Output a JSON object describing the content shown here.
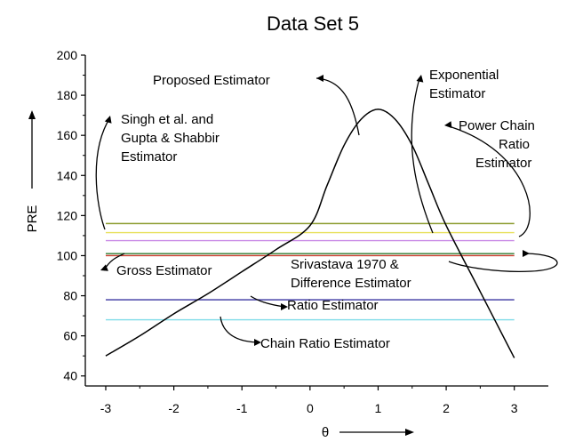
{
  "chart_data": {
    "type": "line",
    "title": "Data Set 5",
    "xlabel": "θ",
    "ylabel": "PRE",
    "xlim": [
      -3.3,
      3.5
    ],
    "ylim": [
      35,
      200
    ],
    "xticks": [
      -3,
      -2,
      -1,
      0,
      1,
      2,
      3
    ],
    "yticks": [
      40,
      60,
      80,
      100,
      120,
      140,
      160,
      180,
      200
    ],
    "grid": false,
    "colors": {
      "curves": "#000000",
      "singh_gupta_shabbir": "#8a9a2c",
      "power_chain_ratio": "#e8e05a",
      "purple_line": "#c98ae6",
      "srivastava_difference": "#2e7d32",
      "gross": "#c73a2a",
      "ratio": "#3a36a0",
      "chain_ratio": "#7fdbe8"
    },
    "constant_series": [
      {
        "color_key": "singh_gupta_shabbir",
        "y": 116,
        "x": [
          -3,
          3
        ]
      },
      {
        "color_key": "power_chain_ratio",
        "y": 111.5,
        "x": [
          -3,
          3
        ]
      },
      {
        "color_key": "purple_line",
        "y": 107.5,
        "x": [
          -3,
          3
        ]
      },
      {
        "color_key": "srivastava_difference",
        "y": 101,
        "x": [
          -3,
          3
        ]
      },
      {
        "color_key": "gross",
        "y": 100,
        "x": [
          -3,
          3
        ]
      },
      {
        "color_key": "ratio",
        "y": 78,
        "x": [
          -3,
          3
        ]
      },
      {
        "color_key": "chain_ratio",
        "y": 68,
        "x": [
          -3,
          3
        ]
      }
    ],
    "curve_series": [
      {
        "id": "proposed",
        "x": [
          -3,
          -2.5,
          -2,
          -1.5,
          -1,
          -0.5,
          0,
          0.25,
          0.5,
          0.75,
          1,
          1.25,
          1.5,
          1.75,
          2,
          2.5,
          3
        ],
        "y": [
          50,
          60,
          71,
          81,
          92,
          103,
          115,
          135,
          155,
          168,
          173,
          168,
          155,
          135,
          115,
          82,
          49
        ]
      }
    ],
    "annotations": [
      {
        "id": "proposed",
        "text": "Proposed Estimator"
      },
      {
        "id": "exponential",
        "text": [
          "Exponential",
          "Estimator"
        ]
      },
      {
        "id": "singh",
        "text": [
          "Singh et al. and",
          "Gupta & Shabbir",
          "Estimator"
        ]
      },
      {
        "id": "powerchain",
        "text": [
          "Power Chain",
          "Ratio",
          "Estimator"
        ]
      },
      {
        "id": "gross",
        "text": "Gross Estimator"
      },
      {
        "id": "srivastava",
        "text": [
          "Srivastava 1970 &",
          "Difference Estimator"
        ]
      },
      {
        "id": "ratio",
        "text": "Ratio Estimator"
      },
      {
        "id": "chainratio",
        "text": "Chain Ratio Estimator"
      }
    ]
  }
}
